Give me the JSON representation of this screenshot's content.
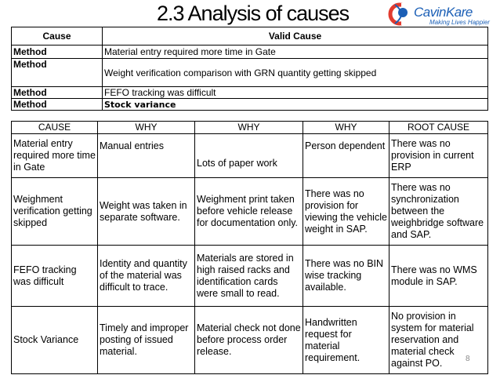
{
  "title": "2.3   Analysis of causes",
  "logo": {
    "brand": "CavinKare",
    "tagline": "Making Lives Happier"
  },
  "table1": {
    "headers": [
      "Cause",
      "Valid Cause"
    ],
    "rows": [
      [
        "Method",
        "Material entry required more time in Gate"
      ],
      [
        "Method",
        "Weight verification comparison with GRN quantity getting skipped"
      ],
      [
        "Method",
        "FEFO tracking was difficult"
      ],
      [
        "Method",
        "Stock variance"
      ]
    ]
  },
  "table2": {
    "headers": [
      "CAUSE",
      "WHY",
      "WHY",
      "WHY",
      "ROOT CAUSE"
    ],
    "rows": [
      [
        "Material entry required more time in Gate",
        "Manual entries",
        "Lots of paper work",
        "Person dependent",
        "There was no provision in current ERP"
      ],
      [
        "Weighment verification getting skipped",
        "Weight was taken in separate software.",
        "Weighment print taken before vehicle release for documentation  only.",
        "There was no provision for viewing the vehicle weight in SAP.",
        "There was no synchronization between the weighbridge software and SAP."
      ],
      [
        "FEFO tracking was difficult",
        "Identity and quantity of the material was difficult to trace.",
        "Materials are  stored in high raised racks and identification cards were small to read.",
        "There was no  BIN wise tracking available.",
        "There was no WMS module  in SAP."
      ],
      [
        "Stock Variance",
        "Timely and improper posting of issued material.",
        "Material check not done before process order release.",
        " Handwritten request for material requirement.",
        "No provision in system for material reservation and material check against PO."
      ]
    ]
  },
  "page_number": "8"
}
